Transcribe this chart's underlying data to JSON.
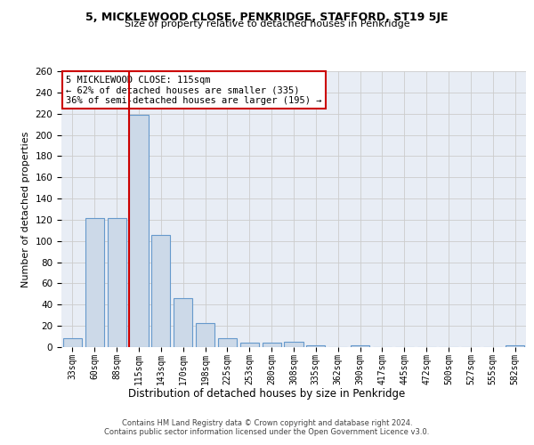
{
  "title1": "5, MICKLEWOOD CLOSE, PENKRIDGE, STAFFORD, ST19 5JE",
  "title2": "Size of property relative to detached houses in Penkridge",
  "xlabel": "Distribution of detached houses by size in Penkridge",
  "ylabel": "Number of detached properties",
  "categories": [
    "33sqm",
    "60sqm",
    "88sqm",
    "115sqm",
    "143sqm",
    "170sqm",
    "198sqm",
    "225sqm",
    "253sqm",
    "280sqm",
    "308sqm",
    "335sqm",
    "362sqm",
    "390sqm",
    "417sqm",
    "445sqm",
    "472sqm",
    "500sqm",
    "527sqm",
    "555sqm",
    "582sqm"
  ],
  "values": [
    8,
    122,
    122,
    219,
    106,
    46,
    23,
    8,
    4,
    4,
    5,
    2,
    0,
    2,
    0,
    0,
    0,
    0,
    0,
    0,
    2
  ],
  "bar_color": "#ccd9e8",
  "bar_edge_color": "#6699cc",
  "red_line_index": 3,
  "annotation_text": "5 MICKLEWOOD CLOSE: 115sqm\n← 62% of detached houses are smaller (335)\n36% of semi-detached houses are larger (195) →",
  "annotation_box_color": "#ffffff",
  "annotation_box_edge": "#cc0000",
  "footer1": "Contains HM Land Registry data © Crown copyright and database right 2024.",
  "footer2": "Contains public sector information licensed under the Open Government Licence v3.0.",
  "bg_color": "#ffffff",
  "grid_color": "#cccccc",
  "ax_bg_color": "#e8edf5",
  "ylim": [
    0,
    260
  ],
  "yticks": [
    0,
    20,
    40,
    60,
    80,
    100,
    120,
    140,
    160,
    180,
    200,
    220,
    240,
    260
  ]
}
